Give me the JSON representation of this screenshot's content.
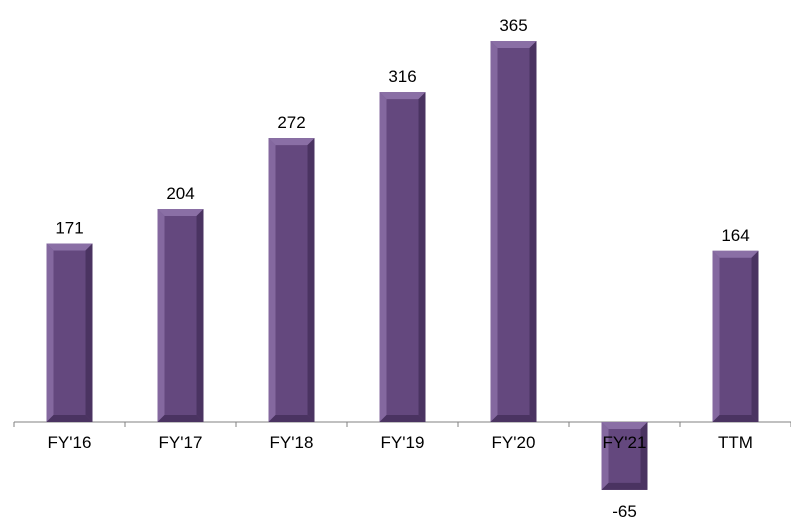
{
  "chart_data": {
    "type": "bar",
    "title": "",
    "xlabel": "",
    "ylabel": "",
    "categories": [
      "FY'16",
      "FY'17",
      "FY'18",
      "FY'19",
      "FY'20",
      "FY'21",
      "TTM"
    ],
    "values": [
      171,
      204,
      272,
      316,
      365,
      -65,
      164
    ],
    "data_labels": [
      "171",
      "204",
      "272",
      "316",
      "365",
      "-65",
      "164"
    ],
    "ylim": [
      -65,
      365
    ],
    "grid": false,
    "legend": "none",
    "colors": {
      "bar_face": "#64487e",
      "bar_side_dark": "#4a3361",
      "bar_side_light": "#8a6fa5",
      "axis": "#808080"
    }
  }
}
